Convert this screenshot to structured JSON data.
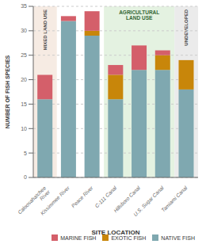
{
  "chart_data": {
    "type": "bar",
    "stacked": true,
    "categories": [
      "Caloosahatchee\nRiver",
      "Kissimmee River",
      "Peace River",
      "C-111 Canal",
      "Hillsboro Canal",
      "U.S. Sugar Canal",
      "Tamiami Canal"
    ],
    "series": [
      {
        "name": "NATIVE FISH",
        "color": "#7fa8b0",
        "values": [
          16,
          32,
          29,
          16,
          22,
          22,
          18
        ]
      },
      {
        "name": "EXOTIC FISH",
        "color": "#c8860a",
        "values": [
          0,
          0,
          1,
          5,
          0,
          3,
          6
        ]
      },
      {
        "name": "MARINE FISH",
        "color": "#d45f6a",
        "values": [
          5,
          1,
          4,
          2,
          5,
          1,
          0
        ]
      }
    ],
    "xlabel": "SITE LOCATION",
    "ylabel": "NUMBER OF FISH SPECIES",
    "ylim": [
      0,
      35
    ],
    "yticks": [
      0,
      5,
      10,
      15,
      20,
      25,
      30,
      35
    ],
    "grid": true,
    "legend": "lower right",
    "annotations": [
      {
        "text": "MIXED LAND USE",
        "color": "#444444",
        "background": "#f5e8de",
        "categories": [
          "Caloosahatchee\nRiver"
        ]
      },
      {
        "text": "AGRICULTURAL\nLAND USE",
        "color": "#336633",
        "background": "#dff0dc",
        "categories": [
          "C-111 Canal",
          "Hillsboro Canal",
          "U.S. Sugar Canal"
        ]
      },
      {
        "text": "UNDEVELOPED",
        "color": "#444444",
        "background": "#e8e8e8",
        "categories": [
          "Tamiami Canal"
        ]
      }
    ]
  }
}
